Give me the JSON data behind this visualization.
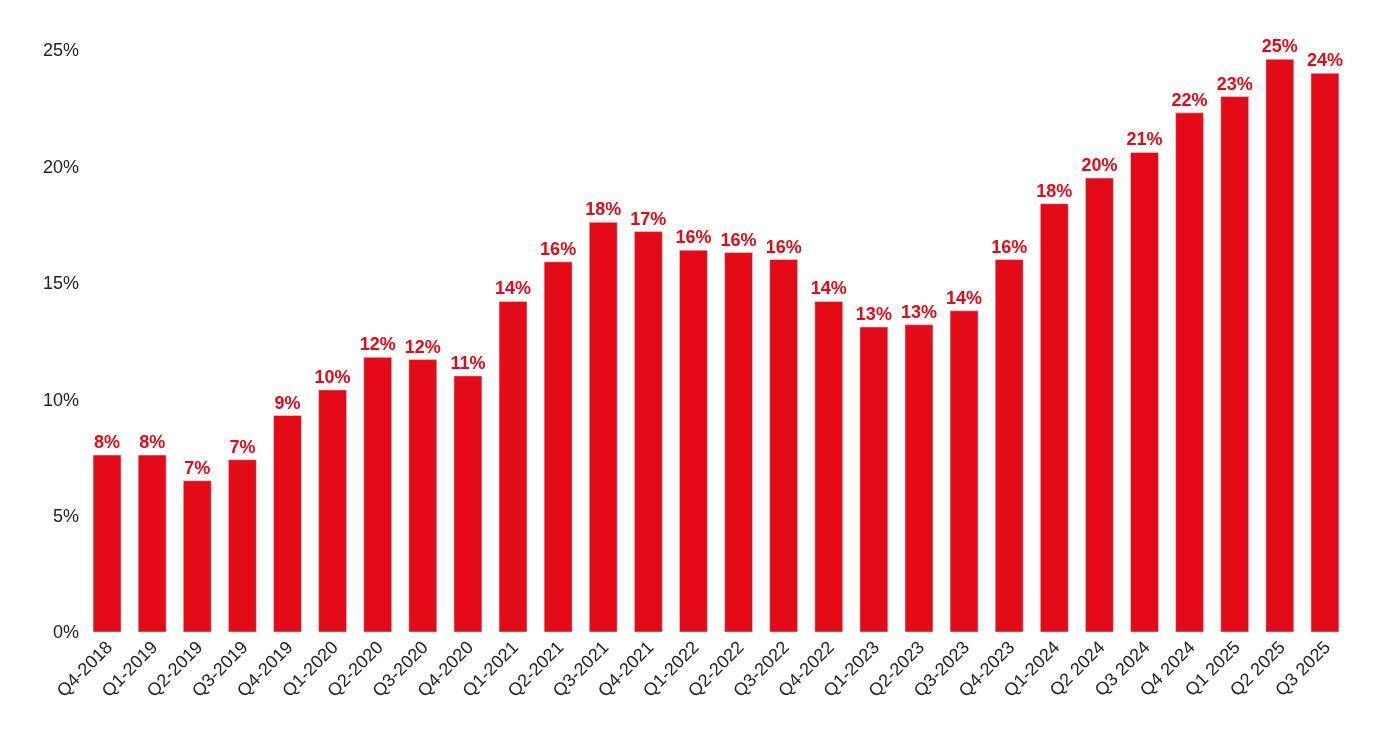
{
  "chart_data": {
    "type": "bar",
    "categories": [
      "Q4-2018",
      "Q1-2019",
      "Q2-2019",
      "Q3-2019",
      "Q4-2019",
      "Q1-2020",
      "Q2-2020",
      "Q3-2020",
      "Q4-2020",
      "Q1-2021",
      "Q2-2021",
      "Q3-2021",
      "Q4-2021",
      "Q1-2022",
      "Q2-2022",
      "Q3-2022",
      "Q4-2022",
      "Q1-2023",
      "Q2-2023",
      "Q3-2023",
      "Q4-2023",
      "Q1-2024",
      "Q2 2024",
      "Q3 2024",
      "Q4 2024",
      "Q1 2025",
      "Q2 2025",
      "Q3 2025"
    ],
    "values": [
      7.6,
      7.6,
      6.5,
      7.4,
      9.3,
      10.4,
      11.8,
      11.7,
      11.0,
      14.2,
      15.9,
      17.6,
      17.2,
      16.4,
      16.3,
      16.0,
      14.2,
      13.1,
      13.2,
      13.8,
      16.0,
      18.4,
      19.5,
      20.6,
      22.3,
      23.0,
      24.6,
      24.0
    ],
    "value_labels": [
      "8%",
      "8%",
      "7%",
      "7%",
      "9%",
      "10%",
      "12%",
      "12%",
      "11%",
      "14%",
      "16%",
      "18%",
      "17%",
      "16%",
      "16%",
      "16%",
      "14%",
      "13%",
      "13%",
      "14%",
      "16%",
      "18%",
      "20%",
      "21%",
      "22%",
      "23%",
      "25%",
      "24%"
    ],
    "color": "#e30b17",
    "ylim": [
      0,
      25
    ],
    "yticks": [
      {
        "value": 0,
        "label": "0%"
      },
      {
        "value": 5,
        "label": "5%"
      },
      {
        "value": 10,
        "label": "10%"
      },
      {
        "value": 15,
        "label": "15%"
      },
      {
        "value": 20,
        "label": "20%"
      },
      {
        "value": 25,
        "label": "25%"
      }
    ],
    "legend": false
  }
}
